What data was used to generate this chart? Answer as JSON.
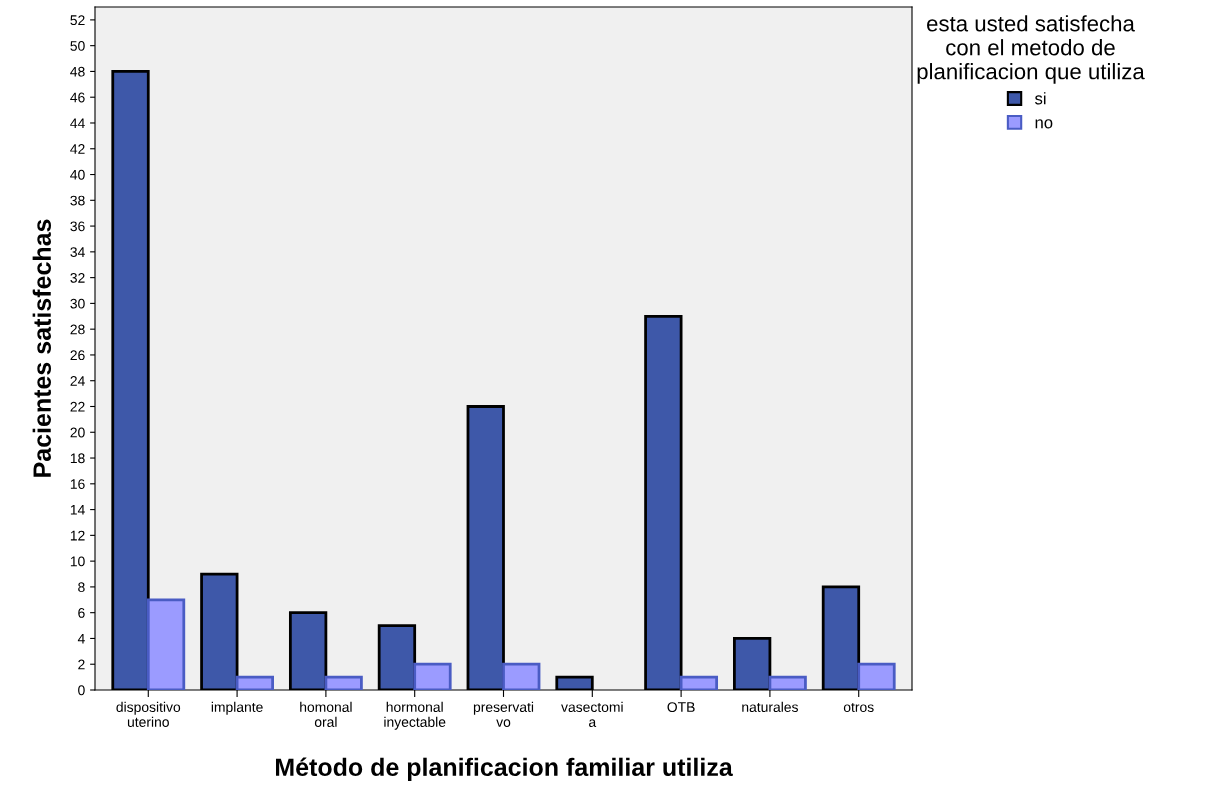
{
  "chart_data": {
    "type": "bar",
    "xlabel": "Método de planificacion familiar utiliza",
    "ylabel": "Pacientes satisfechas",
    "legend_title": "esta usted satisfecha\ncon el metodo de\nplanificacion que utiliza",
    "categories": [
      "dispositivo\nuterino",
      "implante",
      "homonal\noral",
      "hormonal\ninyectable",
      "preservati\nvo",
      "vasectomi\na",
      "OTB",
      "naturales",
      "otros"
    ],
    "series": [
      {
        "name": "si",
        "color": "#3e58a9",
        "values": [
          48,
          9,
          6,
          5,
          22,
          1,
          29,
          4,
          8
        ]
      },
      {
        "name": "no",
        "color": "#9b9bff",
        "values": [
          7,
          1,
          1,
          2,
          2,
          null,
          1,
          1,
          2
        ]
      }
    ],
    "ylim": [
      0,
      53
    ],
    "yticks": [
      0,
      2,
      4,
      6,
      8,
      10,
      12,
      14,
      16,
      18,
      20,
      22,
      24,
      26,
      28,
      30,
      32,
      34,
      36,
      38,
      40,
      42,
      44,
      46,
      48,
      50,
      52
    ],
    "grid": false,
    "legend": "top right"
  }
}
